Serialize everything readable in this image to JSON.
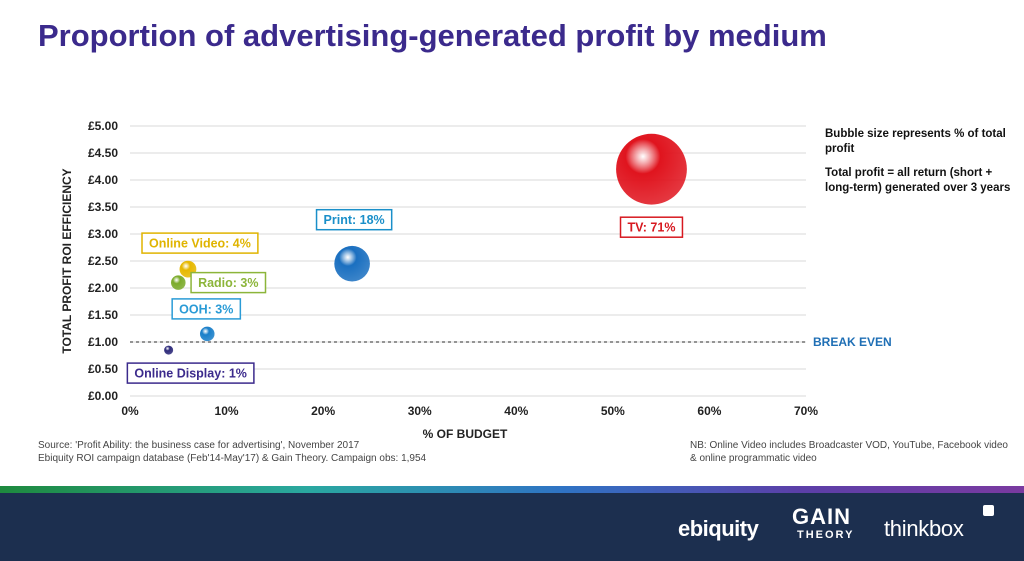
{
  "page": {
    "title": "Proportion of advertising-generated profit by medium",
    "notes": {
      "bubble_size": "Bubble size represents % of total profit",
      "total_profit": "Total profit = all return (short + long-term) generated over 3 years"
    },
    "source_line1": "Source: 'Profit Ability: the business case for advertising', November 2017",
    "source_line2": "Ebiquity ROI campaign database (Feb'14-May'17) & Gain Theory. Campaign obs: 1,954",
    "nb_note": "NB: Online Video includes Broadcaster VOD, YouTube, Facebook video & online programmatic video",
    "logos": {
      "ebiquity": "ebiquity",
      "gain": "GAIN",
      "theory": "THEORY",
      "thinkbox": "thinkbox"
    },
    "colors": {
      "title": "#3b2a8c",
      "footer": "#1c2f4f"
    }
  },
  "chart_data": {
    "type": "scatter",
    "xlabel": "% OF BUDGET",
    "ylabel": "TOTAL PROFIT ROI EFFICIENCY",
    "xlim": [
      0,
      70
    ],
    "ylim": [
      0,
      5
    ],
    "x_ticks": [
      0,
      10,
      20,
      30,
      40,
      50,
      60,
      70
    ],
    "x_tick_labels": [
      "0%",
      "10%",
      "20%",
      "30%",
      "40%",
      "50%",
      "60%",
      "70%"
    ],
    "y_ticks": [
      0,
      0.5,
      1,
      1.5,
      2,
      2.5,
      3,
      3.5,
      4,
      4.5,
      5
    ],
    "y_tick_labels": [
      "£0.00",
      "£0.50",
      "£1.00",
      "£1.50",
      "£2.00",
      "£2.50",
      "£3.00",
      "£3.50",
      "£4.00",
      "£4.50",
      "£5.00"
    ],
    "grid": true,
    "reference_line": {
      "y": 1.0,
      "label": "BREAK EVEN",
      "color": "#1f6fb5"
    },
    "series": [
      {
        "label": "TV: 71%",
        "x": 54,
        "y": 4.2,
        "share": 71,
        "color": "#e0141e",
        "label_color": "#d71920"
      },
      {
        "label": "Print: 18%",
        "x": 23,
        "y": 2.45,
        "share": 18,
        "color": "#1a6fc0",
        "label_color": "#1a8fc9"
      },
      {
        "label": "Online Video: 4%",
        "x": 6,
        "y": 2.35,
        "share": 4,
        "color": "#e6b800",
        "label_color": "#e0b400"
      },
      {
        "label": "Radio: 3%",
        "x": 5,
        "y": 2.1,
        "share": 3,
        "color": "#7bab2a",
        "label_color": "#8cb53a"
      },
      {
        "label": "OOH: 3%",
        "x": 8,
        "y": 1.15,
        "share": 3,
        "color": "#1a7fc9",
        "label_color": "#2a9bd6"
      },
      {
        "label": "Online Display: 1%",
        "x": 4,
        "y": 0.85,
        "share": 1,
        "color": "#2d2a7a",
        "label_color": "#3b2a8c"
      }
    ]
  }
}
